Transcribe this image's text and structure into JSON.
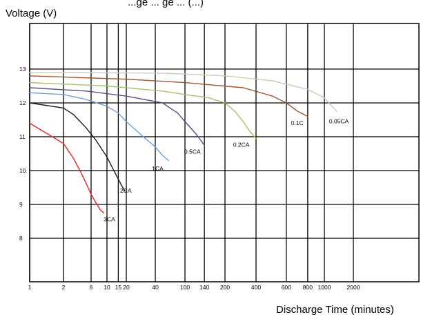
{
  "chart_data": {
    "type": "line",
    "title": "...ge ... ge ... (...)",
    "ylabel": "Voltage (V)",
    "xlabel": "Discharge Time (minutes)",
    "x_scale": "log",
    "xlim": [
      1,
      6000
    ],
    "ylim": [
      7,
      14
    ],
    "grid": true,
    "x_ticks": [
      {
        "value": 1,
        "label": "1"
      },
      {
        "value": 2,
        "label": "2"
      },
      {
        "value": 6,
        "label": "6"
      },
      {
        "value": 10,
        "label": "10"
      },
      {
        "value": 15,
        "label": "15"
      },
      {
        "value": 20,
        "label": "20"
      },
      {
        "value": 40,
        "label": "40"
      },
      {
        "value": 100,
        "label": "100"
      },
      {
        "value": 140,
        "label": "140"
      },
      {
        "value": 200,
        "label": "200"
      },
      {
        "value": 400,
        "label": "400"
      },
      {
        "value": 600,
        "label": "600"
      },
      {
        "value": 800,
        "label": "800"
      },
      {
        "value": 1000,
        "label": "1000"
      },
      {
        "value": 2000,
        "label": "2000"
      }
    ],
    "y_ticks": [
      {
        "value": 8,
        "label": "8"
      },
      {
        "value": 9,
        "label": "9"
      },
      {
        "value": 10,
        "label": "10"
      },
      {
        "value": 11,
        "label": "11"
      },
      {
        "value": 12,
        "label": "12"
      },
      {
        "value": 13,
        "label": "13"
      }
    ],
    "series": [
      {
        "name": "3CA",
        "color": "#e8231e",
        "x": [
          1,
          1.5,
          2,
          3,
          4,
          5,
          6,
          7,
          8,
          9
        ],
        "y": [
          11.4,
          11.05,
          10.8,
          10.35,
          9.95,
          9.6,
          9.3,
          9.05,
          8.85,
          8.75
        ],
        "label_at": [
          9,
          8.5
        ]
      },
      {
        "name": "2CA",
        "color": "#1a1a1a",
        "x": [
          1,
          2,
          3,
          5,
          7,
          10,
          12,
          15,
          17,
          19
        ],
        "y": [
          12.0,
          11.85,
          11.65,
          11.25,
          10.9,
          10.4,
          10.1,
          9.75,
          9.55,
          9.4
        ],
        "label_at": [
          16,
          9.35
        ]
      },
      {
        "name": "1CA",
        "color": "#6a9fd8",
        "x": [
          1,
          2,
          5,
          10,
          15,
          20,
          30,
          40,
          50,
          60
        ],
        "y": [
          12.3,
          12.25,
          12.1,
          11.9,
          11.7,
          11.45,
          11.0,
          10.7,
          10.45,
          10.3
        ],
        "label_at": [
          37,
          10.0
        ]
      },
      {
        "name": "0.5CA",
        "color": "#5e4a8c",
        "x": [
          1,
          5,
          20,
          50,
          80,
          100,
          120,
          140
        ],
        "y": [
          12.45,
          12.35,
          12.2,
          12.0,
          11.7,
          11.45,
          11.1,
          10.75
        ],
        "label_at": [
          98,
          10.5
        ]
      },
      {
        "name": "0.2CA",
        "color": "#9fc46a",
        "x": [
          1,
          10,
          50,
          100,
          150,
          200,
          250,
          300,
          350,
          400
        ],
        "y": [
          12.6,
          12.5,
          12.35,
          12.25,
          12.15,
          12.0,
          11.75,
          11.45,
          11.15,
          10.95
        ],
        "label_at": [
          240,
          10.7
        ]
      },
      {
        "name": "0.1C",
        "color": "#a0552a",
        "x": [
          1,
          20,
          100,
          300,
          500,
          600,
          700,
          800
        ],
        "y": [
          12.8,
          12.7,
          12.6,
          12.45,
          12.2,
          12.0,
          11.75,
          11.6
        ],
        "label_at": [
          640,
          11.35
        ]
      },
      {
        "name": "0.05CA",
        "color": "#cfcbb0",
        "x": [
          1,
          50,
          200,
          500,
          800,
          1000,
          1200,
          1350
        ],
        "y": [
          12.9,
          12.88,
          12.8,
          12.65,
          12.4,
          12.15,
          11.9,
          11.75
        ],
        "label_at": [
          1120,
          11.4
        ]
      }
    ]
  }
}
